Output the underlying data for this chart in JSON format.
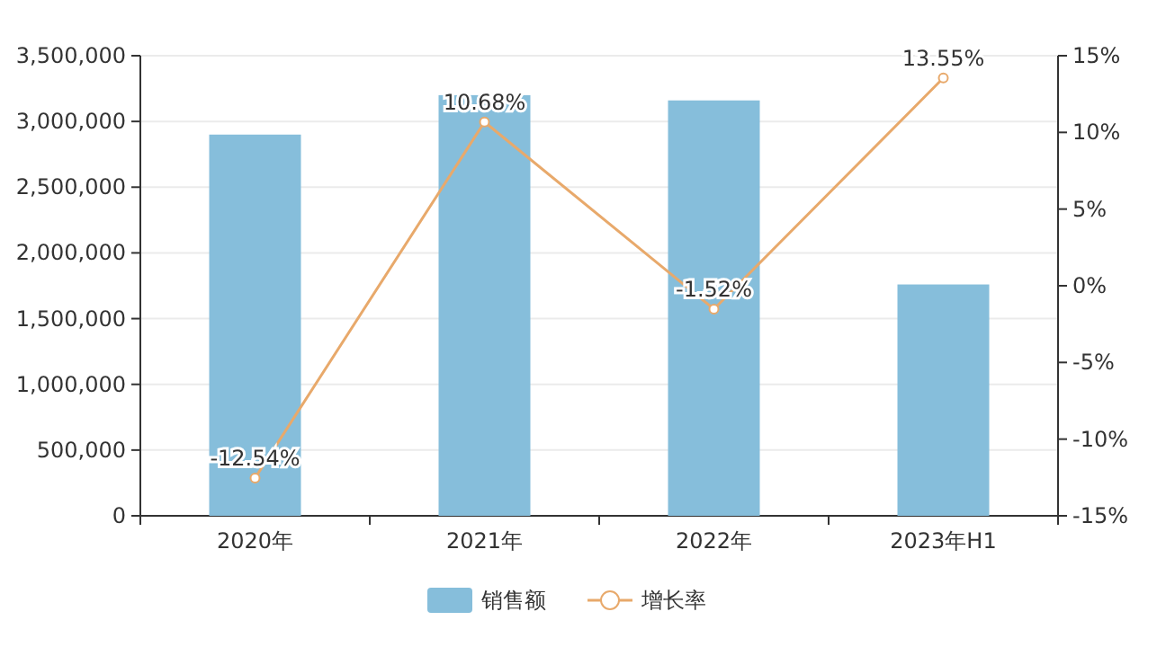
{
  "chart_data": {
    "type": "bar",
    "categories": [
      "2020年",
      "2021年",
      "2022年",
      "2023年H1"
    ],
    "series": [
      {
        "name": "销售额",
        "color": "#86bedb",
        "values": [
          2900000,
          3200000,
          3160000,
          1760000
        ]
      },
      {
        "name": "增长率",
        "type": "line",
        "axis": "y2",
        "color": "#e8a96b",
        "marker": "circle",
        "values": [
          -12.54,
          10.68,
          -1.52,
          13.55
        ],
        "value_labels": [
          "-12.54%",
          "10.68%",
          "-1.52%",
          "13.55%"
        ]
      }
    ],
    "ylim": [
      0,
      3500000
    ],
    "yticks": [
      {
        "value": 0,
        "label": "0"
      },
      {
        "value": 500000,
        "label": "500,000"
      },
      {
        "value": 1000000,
        "label": "1,000,000"
      },
      {
        "value": 1500000,
        "label": "1,500,000"
      },
      {
        "value": 2000000,
        "label": "2,000,000"
      },
      {
        "value": 2500000,
        "label": "2,500,000"
      },
      {
        "value": 3000000,
        "label": "3,000,000"
      },
      {
        "value": 3500000,
        "label": "3,500,000"
      }
    ],
    "y2lim": [
      -15,
      15
    ],
    "y2ticks": [
      {
        "value": -15,
        "label": "-15%"
      },
      {
        "value": -10,
        "label": "-10%"
      },
      {
        "value": -5,
        "label": "-5%"
      },
      {
        "value": 0,
        "label": "0%"
      },
      {
        "value": 5,
        "label": "5%"
      },
      {
        "value": 10,
        "label": "10%"
      },
      {
        "value": 15,
        "label": "15%"
      }
    ],
    "grid": "y",
    "legend": "bottom"
  }
}
